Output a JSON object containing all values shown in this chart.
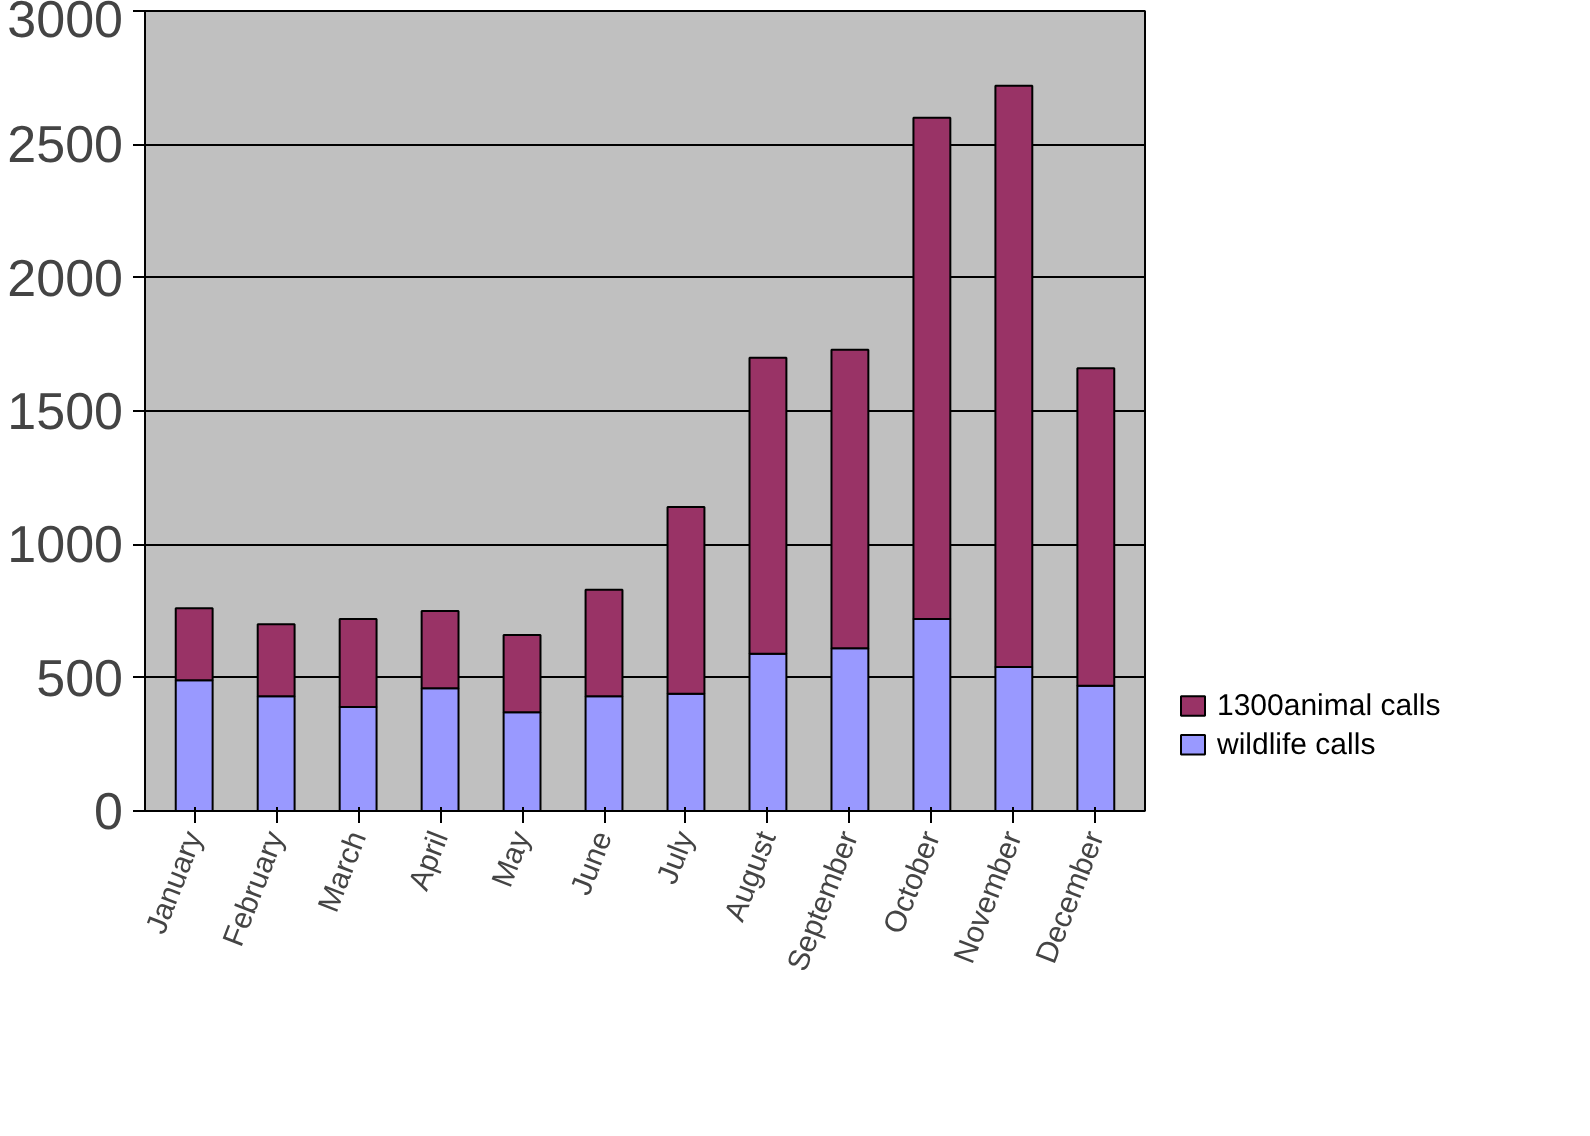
{
  "chart_data": {
    "type": "bar",
    "stacked": true,
    "categories": [
      "January",
      "February",
      "March",
      "April",
      "May",
      "June",
      "July",
      "August",
      "September",
      "October",
      "November",
      "December"
    ],
    "series": [
      {
        "name": "wildlife calls",
        "color": "#9999ff",
        "values": [
          490,
          430,
          390,
          460,
          370,
          430,
          440,
          590,
          610,
          720,
          540,
          470
        ]
      },
      {
        "name": "1300animal calls",
        "color": "#993366",
        "values": [
          270,
          270,
          330,
          290,
          290,
          400,
          700,
          1110,
          1120,
          1880,
          2180,
          1190
        ]
      }
    ],
    "ylim": [
      0,
      3000
    ],
    "yticks": [
      0,
      500,
      1000,
      1500,
      2000,
      2500,
      3000
    ],
    "grid": "y",
    "legend": "bottom right"
  }
}
